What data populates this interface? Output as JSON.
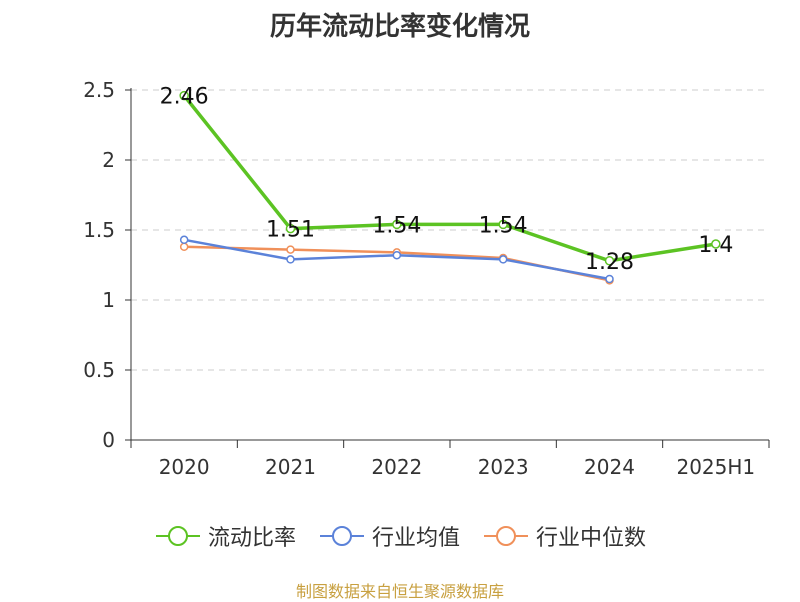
{
  "chart_data": {
    "type": "line",
    "title": "历年流动比率变化情况",
    "categories": [
      "2020",
      "2021",
      "2022",
      "2023",
      "2024",
      "2025H1"
    ],
    "series": [
      {
        "name": "流动比率",
        "color": "#5cc323",
        "values": [
          2.46,
          1.51,
          1.54,
          1.54,
          1.28,
          1.4
        ],
        "data_labels": [
          "2.46",
          "1.51",
          "1.54",
          "1.54",
          "1.28",
          "1.4"
        ]
      },
      {
        "name": "行业均值",
        "color": "#5b82d9",
        "values": [
          1.43,
          1.29,
          1.32,
          1.29,
          1.15,
          null
        ]
      },
      {
        "name": "行业中位数",
        "color": "#f0905a",
        "values": [
          1.38,
          1.36,
          1.34,
          1.3,
          1.14,
          null
        ]
      }
    ],
    "ylim": [
      0,
      2.5
    ],
    "yticks": [
      "0",
      "0.5",
      "1",
      "1.5",
      "2",
      "2.5"
    ],
    "ytick_values": [
      0,
      0.5,
      1,
      1.5,
      2,
      2.5
    ],
    "grid": true,
    "legend_position": "bottom"
  },
  "source_text": "制图数据来自恒生聚源数据库"
}
